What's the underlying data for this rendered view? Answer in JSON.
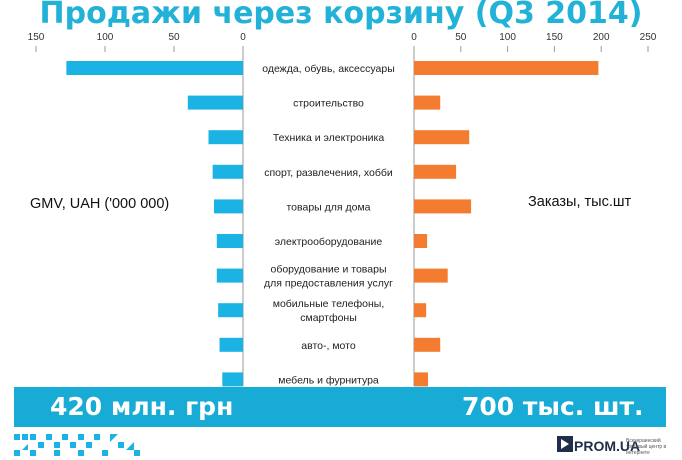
{
  "title": "Продажи через корзину (Q3 2014)",
  "left_label": "GMV,  UAH ('000 000)",
  "right_label": "Заказы,  тыс.шт",
  "banner": {
    "left": "420 млн. грн",
    "right": "700 тыс. шт."
  },
  "logo": {
    "name": "PROM.UA",
    "tagline": "Всеукраинский торговый центр в интернете",
    "icon": "prom-logo-icon"
  },
  "colors": {
    "left_bars": "#1ab3e3",
    "right_bars": "#f47c30",
    "banner": "#17abd6",
    "title": "#22b2d8"
  },
  "chart_data": [
    {
      "type": "bar",
      "orientation": "horizontal",
      "direction": "right-to-left",
      "xlabel": "GMV,  UAH ('000 000)",
      "xlim": [
        0,
        150
      ],
      "xticks": [
        0,
        50,
        100,
        150
      ],
      "categories": [
        "одежда, обувь, аксессуары",
        "строительство",
        "Техника и электроника",
        "спорт, развлечения, хобби",
        "товары для дома",
        "электрооборудование",
        "оборудование и товары для предоставления услуг",
        "мобильные телефоны, смартфоны",
        "авто-, мото",
        "мебель и фурнитура"
      ],
      "values": [
        128,
        40,
        25,
        22,
        21,
        19,
        19,
        18,
        17,
        15
      ]
    },
    {
      "type": "bar",
      "orientation": "horizontal",
      "xlabel": "Заказы,  тыс.шт",
      "xlim": [
        0,
        250
      ],
      "xticks": [
        0,
        50,
        100,
        150,
        200,
        250
      ],
      "categories": [
        "одежда, обувь, аксессуары",
        "строительство",
        "Техника и электроника",
        "спорт, развлечения, хобби",
        "товары для дома",
        "электрооборудование",
        "оборудование и товары для предоставления услуг",
        "мобильные телефоны, смартфоны",
        "авто-, мото",
        "мебель и фурнитура"
      ],
      "category_lines": [
        [
          "одежда, обувь, аксессуары"
        ],
        [
          "строительство"
        ],
        [
          "Техника и электроника"
        ],
        [
          "спорт, развлечения, хобби"
        ],
        [
          "товары для дома"
        ],
        [
          "электрооборудование"
        ],
        [
          "оборудование и товары",
          "для предоставления услуг"
        ],
        [
          "мобильные телефоны,",
          "смартфоны"
        ],
        [
          "авто-, мото"
        ],
        [
          "мебель и фурнитура"
        ]
      ],
      "values": [
        197,
        28,
        59,
        45,
        61,
        14,
        36,
        13,
        28,
        15
      ]
    }
  ]
}
